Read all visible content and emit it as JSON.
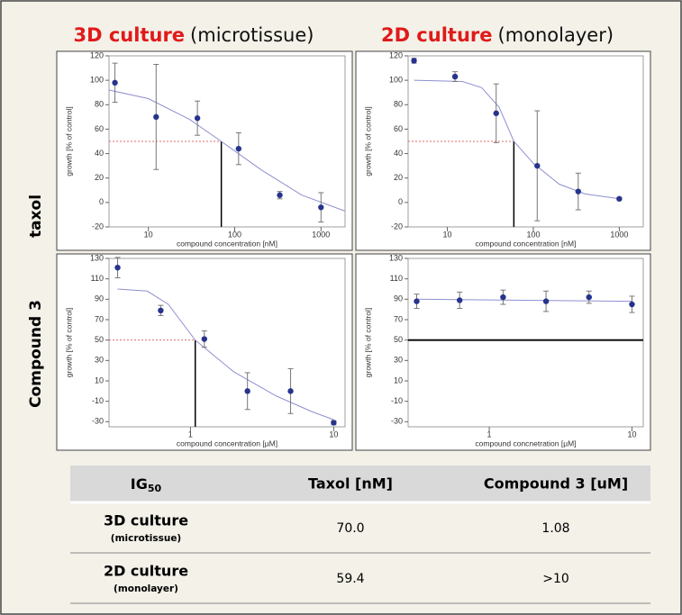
{
  "header": {
    "columns": [
      {
        "name": "3D culture",
        "sub": "(microtissue)"
      },
      {
        "name": "2D culture",
        "sub": "(monolayer)"
      }
    ],
    "rows": [
      "taxol",
      "Compound 3"
    ]
  },
  "chart_data": [
    {
      "type": "line",
      "xlabel": "compound concentration [nM]",
      "ylabel": "growth [% of control]",
      "log_x": true,
      "xlim": [
        3.5,
        1900
      ],
      "xticks": [
        10,
        100,
        1000
      ],
      "ylim": [
        -20,
        120
      ],
      "yticks": [
        -20,
        0,
        20,
        40,
        60,
        80,
        100,
        120
      ],
      "points": {
        "color": "#27338c",
        "x": [
          4.1,
          12.3,
          37,
          111,
          333,
          1000
        ],
        "values": [
          98,
          70,
          69,
          44,
          6,
          -4
        ],
        "errors": [
          16,
          43,
          14,
          13,
          3,
          12
        ]
      },
      "fit": {
        "color": "#8f8fd0",
        "x": [
          3.5,
          10,
          30,
          70,
          200,
          600,
          1900
        ],
        "values": [
          92,
          85,
          68,
          50,
          27,
          6,
          -7
        ]
      },
      "threshold": 50,
      "ig50": 70.0
    },
    {
      "type": "line",
      "xlabel": "compound concentration [nM]",
      "ylabel": "growth [% of control]",
      "log_x": true,
      "xlim": [
        3.5,
        1900
      ],
      "xticks": [
        10,
        100,
        1000
      ],
      "ylim": [
        -20,
        120
      ],
      "yticks": [
        -20,
        0,
        20,
        40,
        60,
        80,
        100,
        120
      ],
      "points": {
        "color": "#27338c",
        "x": [
          4.1,
          12.3,
          37,
          111,
          333,
          1000
        ],
        "values": [
          116,
          103,
          73,
          30,
          9,
          3
        ],
        "errors": [
          2,
          4,
          24,
          45,
          15,
          1
        ]
      },
      "fit": {
        "color": "#8f8fd0",
        "x": [
          4.1,
          15,
          25,
          40,
          59.4,
          100,
          200,
          400,
          1000
        ],
        "values": [
          100,
          99,
          94,
          78,
          50,
          32,
          15,
          7,
          3
        ]
      },
      "threshold": 50,
      "ig50": 59.4
    },
    {
      "type": "line",
      "xlabel": "compound concentration [µM]",
      "ylabel": "growth [% of control]",
      "log_x": true,
      "xlim": [
        0.27,
        12
      ],
      "xticks": [
        1,
        10
      ],
      "ylim": [
        -35,
        130
      ],
      "yticks": [
        -30,
        -10,
        10,
        30,
        50,
        70,
        90,
        110,
        130
      ],
      "points": {
        "color": "#27338c",
        "x": [
          0.31,
          0.62,
          1.25,
          2.5,
          5,
          10
        ],
        "values": [
          121,
          79,
          51,
          0,
          0,
          -31
        ],
        "errors": [
          10,
          5,
          8,
          18,
          22,
          2
        ]
      },
      "fit": {
        "color": "#8f8fd0",
        "x": [
          0.31,
          0.5,
          0.7,
          1.08,
          2,
          4,
          7,
          10
        ],
        "values": [
          100,
          98,
          85,
          50,
          19,
          -5,
          -20,
          -28
        ]
      },
      "threshold": 50,
      "ig50": 1.08
    },
    {
      "type": "line",
      "xlabel": "compound concnetration [µM]",
      "ylabel": "growth [% of control]",
      "log_x": true,
      "xlim": [
        0.27,
        12
      ],
      "xticks": [
        1,
        10
      ],
      "ylim": [
        -35,
        130
      ],
      "yticks": [
        -30,
        -10,
        10,
        30,
        50,
        70,
        90,
        110,
        130
      ],
      "points": {
        "color": "#27338c",
        "x": [
          0.31,
          0.62,
          1.25,
          2.5,
          5,
          10
        ],
        "values": [
          88,
          89,
          92,
          88,
          92,
          85
        ],
        "errors": [
          7,
          8,
          7,
          10,
          6,
          8
        ]
      },
      "fit": {
        "color": "#8f8fd0",
        "x": [
          0.31,
          10
        ],
        "values": [
          90,
          88
        ]
      },
      "threshold": 50
    }
  ],
  "table": {
    "header": [
      {
        "text": "IG",
        "sub": "50"
      },
      "Taxol [nM]",
      "Compound 3 [uM]"
    ],
    "rows": [
      [
        {
          "name": "3D culture",
          "sub": "(microtissue)"
        },
        "70.0",
        "1.08"
      ],
      [
        {
          "name": "2D culture",
          "sub": "(monolayer)"
        },
        "59.4",
        ">10"
      ]
    ]
  }
}
